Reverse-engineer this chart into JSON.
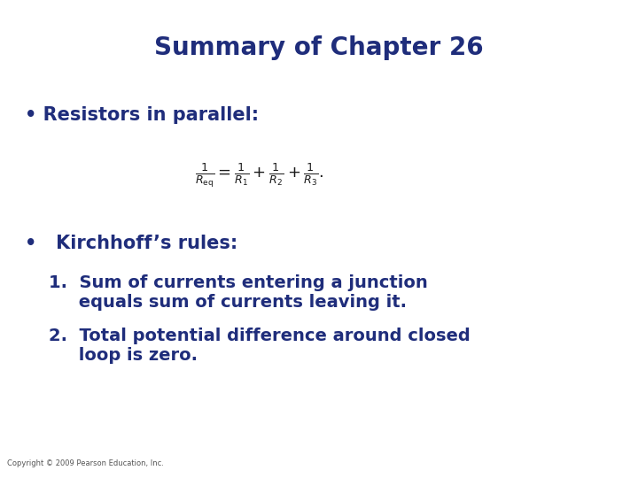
{
  "title": "Summary of Chapter 26",
  "title_color": "#1f2d7b",
  "title_fontsize": 20,
  "background_color": "#ffffff",
  "text_color": "#1f2d7b",
  "bullet1_text": "• Resistors in parallel:",
  "bullet1_fontsize": 15,
  "formula": "$\\frac{1}{R_{\\mathrm{eq}}} = \\frac{1}{R_1} + \\frac{1}{R_2} + \\frac{1}{R_3}.$",
  "formula_fontsize": 13,
  "formula_color": "#1a1a1a",
  "bullet2_text": "•   Kirchhoff’s rules:",
  "bullet2_fontsize": 15,
  "item1_line1": "1.  Sum of currents entering a junction",
  "item1_line2": "     equals sum of currents leaving it.",
  "item1_fontsize": 14,
  "item2_line1": "2.  Total potential difference around closed",
  "item2_line2": "     loop is zero.",
  "item2_fontsize": 14,
  "copyright": "Copyright © 2009 Pearson Education, Inc.",
  "copyright_fontsize": 6,
  "copyright_color": "#555555"
}
